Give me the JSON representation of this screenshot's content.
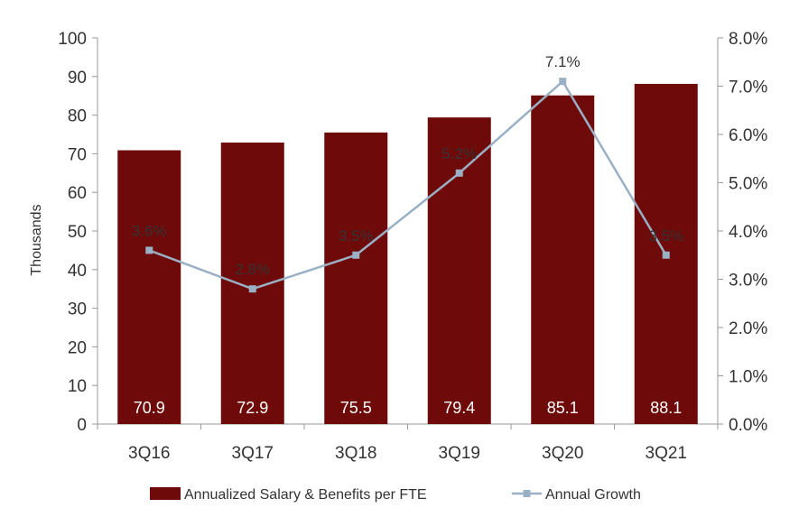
{
  "chart_data": {
    "type": "bar",
    "categories": [
      "3Q16",
      "3Q17",
      "3Q18",
      "3Q19",
      "3Q20",
      "3Q21"
    ],
    "series": [
      {
        "name": "Annualized Salary & Benefits per FTE",
        "type": "bar",
        "axis": "left",
        "values": [
          70.9,
          72.9,
          75.5,
          79.4,
          85.1,
          88.1
        ],
        "labels": [
          "70.9",
          "72.9",
          "75.5",
          "79.4",
          "85.1",
          "88.1"
        ]
      },
      {
        "name": "Annual Growth",
        "type": "line",
        "axis": "right",
        "values": [
          3.6,
          2.8,
          3.5,
          5.2,
          7.1,
          3.5
        ],
        "labels": [
          "3.6%",
          "2.8%",
          "3.5%",
          "5.2%",
          "7.1%",
          "3.5%"
        ]
      }
    ],
    "ylabel": "Thousands",
    "ylim": [
      0,
      100
    ],
    "y_ticks": [
      "0",
      "10",
      "20",
      "30",
      "40",
      "50",
      "60",
      "70",
      "80",
      "90",
      "100"
    ],
    "y2lim": [
      0,
      8
    ],
    "y2_ticks": [
      "0.0%",
      "1.0%",
      "2.0%",
      "3.0%",
      "4.0%",
      "5.0%",
      "6.0%",
      "7.0%",
      "8.0%"
    ],
    "grid": false,
    "legend_position": "bottom",
    "colors": {
      "bar": "#6f0a0a",
      "line": "#9ab0c4",
      "axis": "#9a9a9a"
    }
  }
}
